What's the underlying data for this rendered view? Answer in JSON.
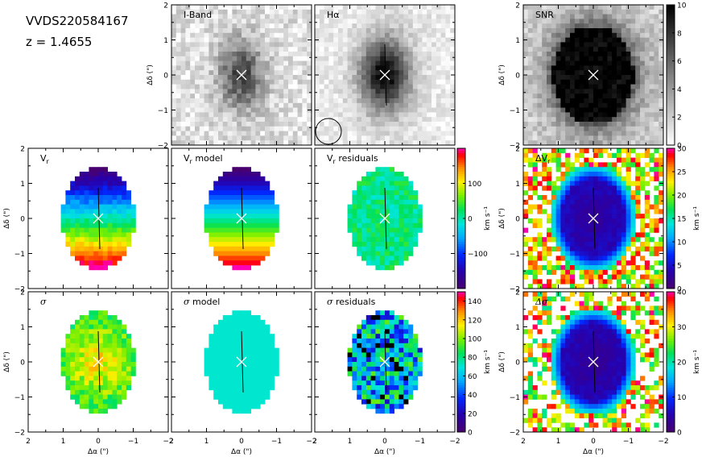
{
  "header": {
    "object_name": "VVDS220584167",
    "redshift_label": "z = 1.4655"
  },
  "axes": {
    "x_label": "Δα (\")",
    "y_label": "Δδ (\")",
    "x_range": [
      2,
      -2
    ],
    "y_range": [
      -2,
      2
    ],
    "x_ticks": [
      "2",
      "1",
      "0",
      "−1",
      "−2"
    ],
    "y_ticks": [
      "2",
      "1",
      "0",
      "−1",
      "−2"
    ]
  },
  "chart_data": [
    {
      "type": "heatmap",
      "title": "I-Band",
      "map": "iband",
      "colormap": "gray"
    },
    {
      "type": "heatmap",
      "title": "Hα",
      "map": "halpha",
      "colormap": "gray",
      "annotations": [
        "psf-circle",
        "major-axis-line"
      ]
    },
    {
      "type": "heatmap",
      "title": "SNR",
      "map": "snr",
      "colormap": "gray",
      "colorbar": {
        "min": 0,
        "max": 10,
        "ticks": [
          "0",
          "2",
          "4",
          "6",
          "8",
          "10"
        ]
      }
    },
    {
      "type": "heatmap",
      "title": "V",
      "title_sub": "r",
      "map": "vr",
      "colormap": "rainbow"
    },
    {
      "type": "heatmap",
      "title": "V",
      "title_sub": "r",
      "title_suffix": " model",
      "map": "vr_model",
      "colormap": "rainbow"
    },
    {
      "type": "heatmap",
      "title": "V",
      "title_sub": "r",
      "title_suffix": " residuals",
      "map": "vr_residuals",
      "colormap": "rainbow",
      "colorbar": {
        "min": -200,
        "max": 200,
        "ticks": [
          "100",
          "0",
          "−100"
        ],
        "unit": "km s⁻¹"
      }
    },
    {
      "type": "heatmap",
      "title": "ΔV",
      "title_sub": "r",
      "map": "vr_error",
      "colormap": "rainbow",
      "colorbar": {
        "min": 0,
        "max": 30,
        "ticks": [
          "0",
          "5",
          "10",
          "15",
          "20",
          "25",
          "30"
        ],
        "unit": "km s⁻¹"
      }
    },
    {
      "type": "heatmap",
      "title": "σ",
      "map": "sigma",
      "colormap": "rainbow"
    },
    {
      "type": "heatmap",
      "title": "σ",
      "title_suffix": " model",
      "map": "sigma_model",
      "colormap": "rainbow"
    },
    {
      "type": "heatmap",
      "title": "σ",
      "title_suffix": " residuals",
      "map": "sigma_residuals",
      "colormap": "rainbow",
      "colorbar": {
        "min": 0,
        "max": 150,
        "ticks": [
          "0",
          "20",
          "40",
          "60",
          "80",
          "100",
          "120",
          "140"
        ],
        "unit": "km s⁻¹"
      }
    },
    {
      "type": "heatmap",
      "title": "Δσ",
      "map": "sigma_error",
      "colormap": "rainbow",
      "colorbar": {
        "min": 0,
        "max": 40,
        "ticks": [
          "0",
          "10",
          "20",
          "30",
          "40"
        ],
        "unit": "km s⁻¹"
      }
    }
  ]
}
